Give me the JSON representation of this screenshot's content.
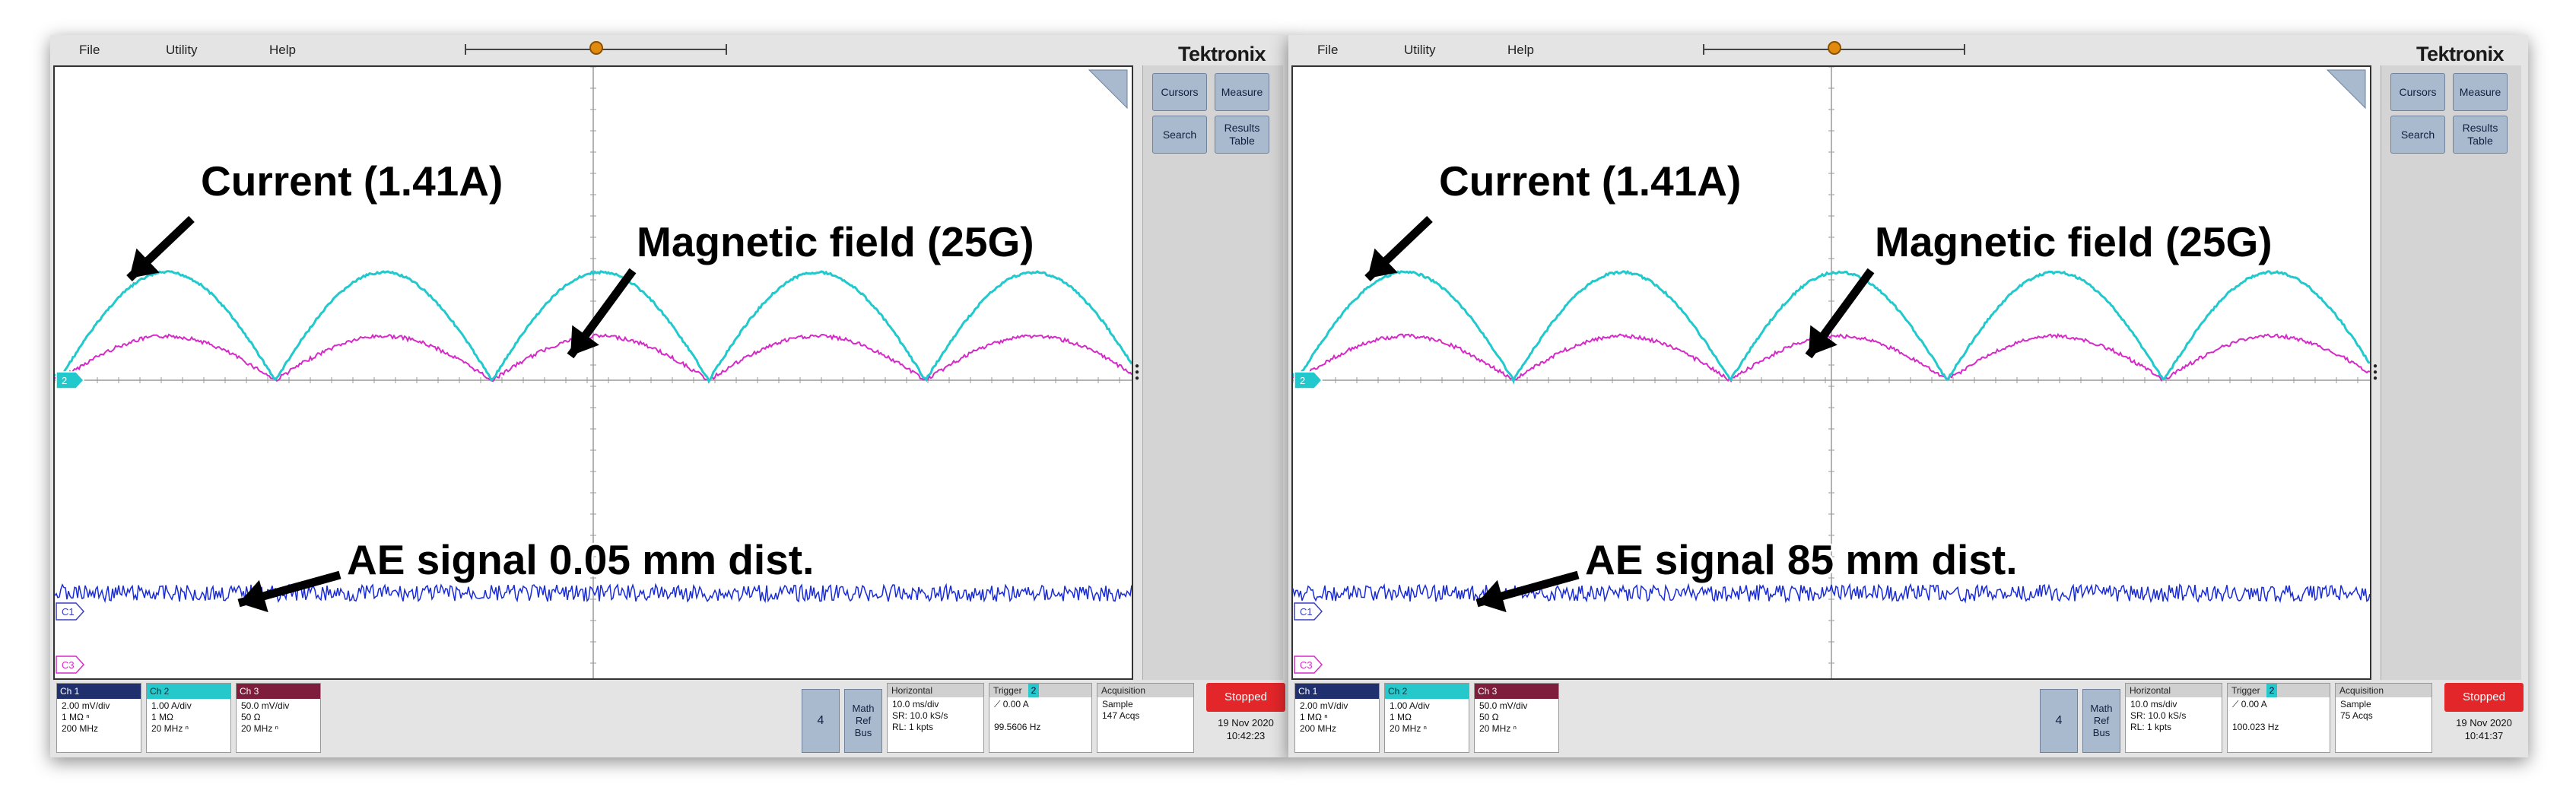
{
  "scopes": [
    {
      "menu": [
        "File",
        "Utility",
        "Help"
      ],
      "brand": "Tektronix",
      "trigger_marker": "T",
      "side_buttons": [
        "Cursors",
        "Measure",
        "Search",
        "Results\nTable"
      ],
      "annotations": {
        "current": "Current (1.41A)",
        "magnetic": "Magnetic field (25G)",
        "ae": "AE signal 0.05 mm dist."
      },
      "channel_markers": [
        "2",
        "C1",
        "C3"
      ],
      "channels": [
        {
          "name": "Ch 1",
          "line1": "2.00 mV/div",
          "line2": "1 MΩ ⁿ",
          "line3": "200 MHz",
          "color": "#1a2cd8"
        },
        {
          "name": "Ch 2",
          "line1": "1.00 A/div",
          "line2": "1 MΩ",
          "line3": "20 MHz ⁿ",
          "color": "#22c9cc"
        },
        {
          "name": "Ch 3",
          "line1": "50.0 mV/div",
          "line2": "50 Ω",
          "line3": "20 MHz ⁿ",
          "color": "#d62ac8"
        }
      ],
      "tiles": {
        "four": "4",
        "math": "Math\nRef\nBus"
      },
      "horizontal": {
        "title": "Horizontal",
        "lines": "10.0 ms/div\nSR: 10.0 kS/s\nRL: 1 kpts"
      },
      "trigger": {
        "title": "Trigger",
        "channel": "2",
        "level": "0.00 A",
        "freq": "99.5606 Hz"
      },
      "acquisition": {
        "title": "Acquisition",
        "mode": "Sample",
        "acqs": "147 Acqs"
      },
      "status": "Stopped",
      "date": "19 Nov 2020",
      "time": "10:42:23"
    },
    {
      "menu": [
        "File",
        "Utility",
        "Help"
      ],
      "brand": "Tektronix",
      "trigger_marker": "T",
      "side_buttons": [
        "Cursors",
        "Measure",
        "Search",
        "Results\nTable"
      ],
      "annotations": {
        "current": "Current (1.41A)",
        "magnetic": "Magnetic field (25G)",
        "ae": "AE signal 85 mm dist."
      },
      "channel_markers": [
        "2",
        "C1",
        "C3"
      ],
      "channels": [
        {
          "name": "Ch 1",
          "line1": "2.00 mV/div",
          "line2": "1 MΩ ⁿ",
          "line3": "200 MHz",
          "color": "#1a2cd8"
        },
        {
          "name": "Ch 2",
          "line1": "1.00 A/div",
          "line2": "1 MΩ",
          "line3": "20 MHz ⁿ",
          "color": "#22c9cc"
        },
        {
          "name": "Ch 3",
          "line1": "50.0 mV/div",
          "line2": "50 Ω",
          "line3": "20 MHz ⁿ",
          "color": "#d62ac8"
        }
      ],
      "tiles": {
        "four": "4",
        "math": "Math\nRef\nBus"
      },
      "horizontal": {
        "title": "Horizontal",
        "lines": "10.0 ms/div\nSR: 10.0 kS/s\nRL: 1 kpts"
      },
      "trigger": {
        "title": "Trigger",
        "channel": "2",
        "level": "0.00 A",
        "freq": "100.023 Hz"
      },
      "acquisition": {
        "title": "Acquisition",
        "mode": "Sample",
        "acqs": "75 Acqs"
      },
      "status": "Stopped",
      "date": "19 Nov 2020",
      "time": "10:41:37"
    }
  ]
}
